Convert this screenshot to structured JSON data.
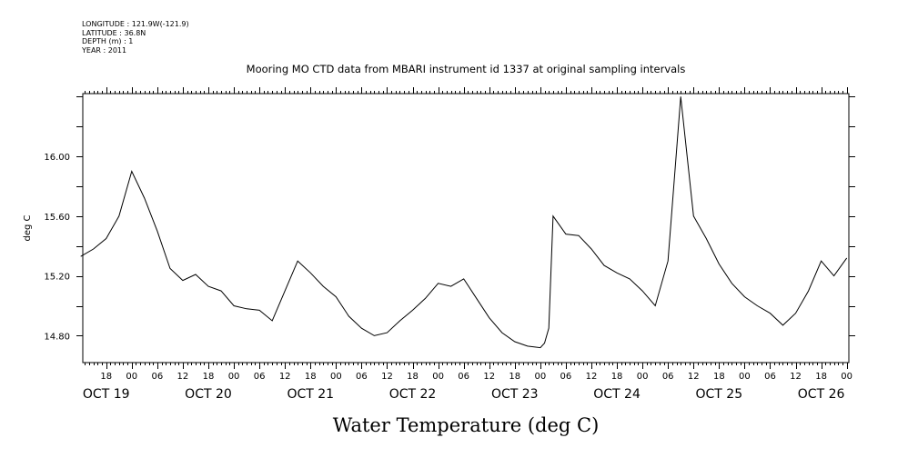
{
  "meta": {
    "longitude": "LONGITUDE : 121.9W(-121.9)",
    "latitude": "LATITUDE : 36.8N",
    "depth": "DEPTH (m) : 1",
    "year": "YEAR : 2011"
  },
  "chart_data": {
    "type": "line",
    "title": "Mooring MO CTD data from MBARI instrument id 1337 at original sampling intervals",
    "xlabel": "Water Temperature (deg C)",
    "ylabel": "deg C",
    "y_ticks": [
      "14.80",
      "15.20",
      "15.60",
      "16.00"
    ],
    "ylim": [
      14.62,
      16.42
    ],
    "xlim": [
      "2011-10-19 06:30",
      "2011-10-26 18:30"
    ],
    "x_hour_ticks": [
      "18",
      "00",
      "06",
      "12",
      "18",
      "00",
      "06",
      "12",
      "18",
      "00",
      "06",
      "12",
      "18",
      "00",
      "06",
      "12",
      "18",
      "00",
      "06",
      "12",
      "18",
      "00",
      "06",
      "12",
      "18",
      "00",
      "06",
      "12",
      "18",
      "00",
      "06",
      "12"
    ],
    "x_day_labels": [
      "OCT 19",
      "OCT 20",
      "OCT 21",
      "OCT 22",
      "OCT 23",
      "OCT 24",
      "OCT 25",
      "OCT 26"
    ],
    "grid": false,
    "series": [
      {
        "x": [
          "2011-10-19 06:00",
          "2011-10-19 09:00",
          "2011-10-19 12:00",
          "2011-10-19 15:00",
          "2011-10-19 18:00",
          "2011-10-19 21:00",
          "2011-10-20 00:00",
          "2011-10-20 03:00",
          "2011-10-20 06:00",
          "2011-10-20 09:00",
          "2011-10-20 12:00",
          "2011-10-20 15:00",
          "2011-10-20 18:00",
          "2011-10-20 21:00",
          "2011-10-21 00:00",
          "2011-10-21 03:00",
          "2011-10-21 06:00",
          "2011-10-21 09:00",
          "2011-10-21 12:00",
          "2011-10-21 15:00",
          "2011-10-21 18:00",
          "2011-10-21 21:00",
          "2011-10-22 00:00",
          "2011-10-22 03:00",
          "2011-10-22 06:00",
          "2011-10-22 09:00",
          "2011-10-22 12:00",
          "2011-10-22 15:00",
          "2011-10-22 18:00",
          "2011-10-22 21:00",
          "2011-10-23 00:00",
          "2011-10-23 03:00",
          "2011-10-23 06:00",
          "2011-10-23 09:00",
          "2011-10-23 12:00",
          "2011-10-23 15:00",
          "2011-10-23 18:00",
          "2011-10-23 19:00",
          "2011-10-23 20:00",
          "2011-10-23 21:00",
          "2011-10-24 00:00",
          "2011-10-24 03:00",
          "2011-10-24 06:00",
          "2011-10-24 09:00",
          "2011-10-24 12:00",
          "2011-10-24 15:00",
          "2011-10-24 18:00",
          "2011-10-24 21:00",
          "2011-10-25 00:00",
          "2011-10-25 03:00",
          "2011-10-25 06:00",
          "2011-10-25 09:00",
          "2011-10-25 12:00",
          "2011-10-25 15:00",
          "2011-10-25 18:00",
          "2011-10-25 21:00",
          "2011-10-26 00:00",
          "2011-10-26 03:00",
          "2011-10-26 06:00",
          "2011-10-26 09:00",
          "2011-10-26 12:00",
          "2011-10-26 15:00",
          "2011-10-26 18:00"
        ],
        "values": [
          15.33,
          15.38,
          15.45,
          15.6,
          15.9,
          15.72,
          15.5,
          15.25,
          15.17,
          15.21,
          15.13,
          15.1,
          15.0,
          14.98,
          14.97,
          14.9,
          15.1,
          15.3,
          15.22,
          15.13,
          15.06,
          14.93,
          14.85,
          14.8,
          14.82,
          14.9,
          14.97,
          15.05,
          15.15,
          15.13,
          15.18,
          15.05,
          14.92,
          14.82,
          14.76,
          14.73,
          14.72,
          14.75,
          14.85,
          15.6,
          15.48,
          15.47,
          15.38,
          15.27,
          15.22,
          15.18,
          15.1,
          15.0,
          15.3,
          16.4,
          15.6,
          15.45,
          15.28,
          15.15,
          15.06,
          15.0,
          14.95,
          14.87,
          14.95,
          15.1,
          15.3,
          15.2,
          15.32
        ]
      }
    ]
  }
}
